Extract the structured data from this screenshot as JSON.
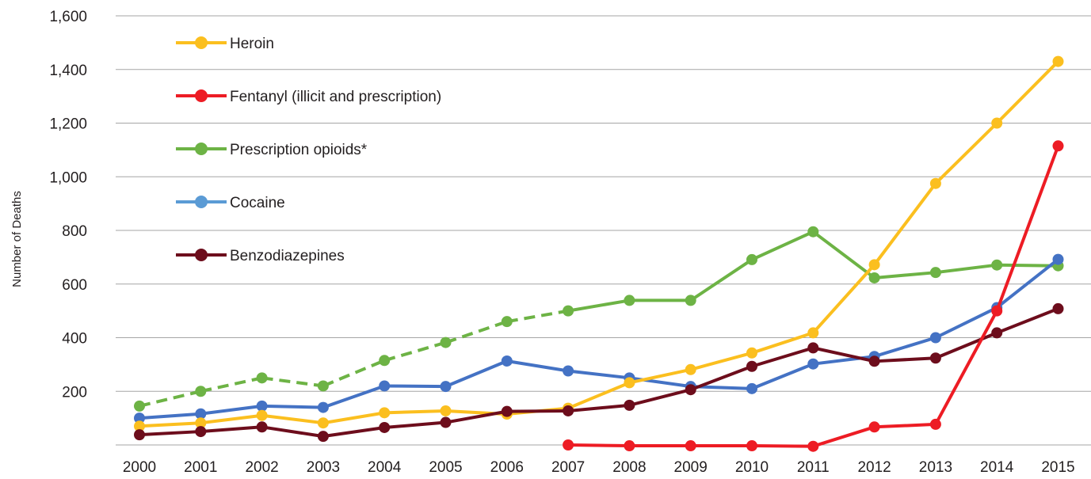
{
  "chart_data": {
    "type": "line",
    "title": "",
    "xlabel": "",
    "ylabel": "Number of Deaths",
    "ylim": [
      0,
      1600
    ],
    "yticks": [
      200,
      400,
      600,
      800,
      1000,
      1200,
      1400,
      1600
    ],
    "ytick_labels": [
      "200",
      "400",
      "600",
      "800",
      "1,000",
      "1,200",
      "1,400",
      "1,600"
    ],
    "categories": [
      "2000",
      "2001",
      "2002",
      "2003",
      "2004",
      "2005",
      "2006",
      "2007",
      "2008",
      "2009",
      "2010",
      "2011",
      "2012",
      "2013",
      "2014",
      "2015"
    ],
    "grid": "horizontal",
    "legend_position": "top-left",
    "series": [
      {
        "name": "Heroin",
        "color": "#fbbf1f",
        "values": [
          70,
          82,
          110,
          82,
          120,
          127,
          115,
          137,
          232,
          281,
          343,
          418,
          672,
          975,
          1200,
          1430
        ]
      },
      {
        "name": "Fentanyl (illicit and prescription)",
        "color": "#ed1c24",
        "values": [
          null,
          null,
          null,
          null,
          null,
          null,
          null,
          0,
          -3,
          -3,
          -3,
          -5,
          67,
          77,
          500,
          1115
        ]
      },
      {
        "name": "Prescription opioids*",
        "color": "#6db345",
        "values": [
          145,
          200,
          250,
          220,
          315,
          382,
          460,
          500,
          539,
          539,
          691,
          795,
          623,
          643,
          671,
          668
        ],
        "dashed_until_index": 7
      },
      {
        "name": "Cocaine",
        "color": "#4472c4",
        "legend_color": "#5b9bd5",
        "values": [
          100,
          116,
          145,
          140,
          220,
          218,
          313,
          276,
          250,
          218,
          210,
          302,
          330,
          400,
          512,
          692
        ]
      },
      {
        "name": "Benzodiazepines",
        "color": "#6d0d1c",
        "values": [
          38,
          50,
          67,
          32,
          65,
          84,
          125,
          127,
          148,
          206,
          293,
          362,
          312,
          324,
          418,
          508
        ]
      }
    ]
  }
}
